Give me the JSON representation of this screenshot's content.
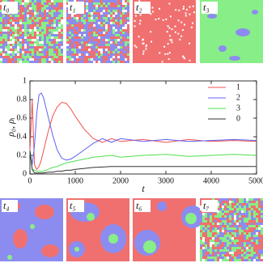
{
  "panels": [
    "t₀",
    "t₁",
    "t₂",
    "t₃",
    "t₄",
    "t₅",
    "t₆",
    "t₇"
  ],
  "chart_data": {
    "type": "line",
    "x_label": "t",
    "y_label": "ρ₀, ρᵢ",
    "x": [
      0,
      50,
      100,
      150,
      200,
      250,
      300,
      400,
      500,
      600,
      700,
      800,
      900,
      1000,
      1200,
      1400,
      1600,
      1800,
      2000,
      2500,
      3000,
      3500,
      4000,
      4500,
      5000
    ],
    "series": [
      {
        "name": "1",
        "color": "#f05050",
        "values": [
          0.25,
          0.8,
          0.1,
          0.05,
          0.08,
          0.15,
          0.25,
          0.45,
          0.62,
          0.72,
          0.77,
          0.76,
          0.7,
          0.62,
          0.48,
          0.38,
          0.34,
          0.38,
          0.35,
          0.37,
          0.34,
          0.37,
          0.35,
          0.36,
          0.35
        ]
      },
      {
        "name": "2",
        "color": "#6060f0",
        "values": [
          0.25,
          0.1,
          0.3,
          0.65,
          0.85,
          0.87,
          0.82,
          0.62,
          0.42,
          0.26,
          0.17,
          0.15,
          0.16,
          0.19,
          0.26,
          0.33,
          0.38,
          0.34,
          0.38,
          0.35,
          0.37,
          0.35,
          0.36,
          0.37,
          0.36
        ]
      },
      {
        "name": "3",
        "color": "#50e050",
        "values": [
          0.25,
          0.05,
          0.04,
          0.03,
          0.03,
          0.03,
          0.03,
          0.05,
          0.07,
          0.08,
          0.1,
          0.12,
          0.13,
          0.14,
          0.16,
          0.18,
          0.19,
          0.2,
          0.18,
          0.2,
          0.21,
          0.19,
          0.2,
          0.21,
          0.2
        ]
      },
      {
        "name": "0",
        "color": "#333333",
        "values": [
          0.25,
          0.05,
          0.01,
          0.01,
          0.01,
          0.01,
          0.01,
          0.02,
          0.02,
          0.03,
          0.03,
          0.04,
          0.04,
          0.05,
          0.06,
          0.07,
          0.075,
          0.08,
          0.08,
          0.08,
          0.08,
          0.08,
          0.08,
          0.08,
          0.08
        ]
      }
    ],
    "xlim": [
      0,
      5000
    ],
    "xticks": [
      0,
      1000,
      2000,
      3000,
      4000,
      5000
    ],
    "ylim": [
      0,
      1
    ],
    "yticks": [
      0,
      0.2,
      0.4,
      0.6,
      0.8,
      1
    ],
    "legend": "upper-right"
  }
}
